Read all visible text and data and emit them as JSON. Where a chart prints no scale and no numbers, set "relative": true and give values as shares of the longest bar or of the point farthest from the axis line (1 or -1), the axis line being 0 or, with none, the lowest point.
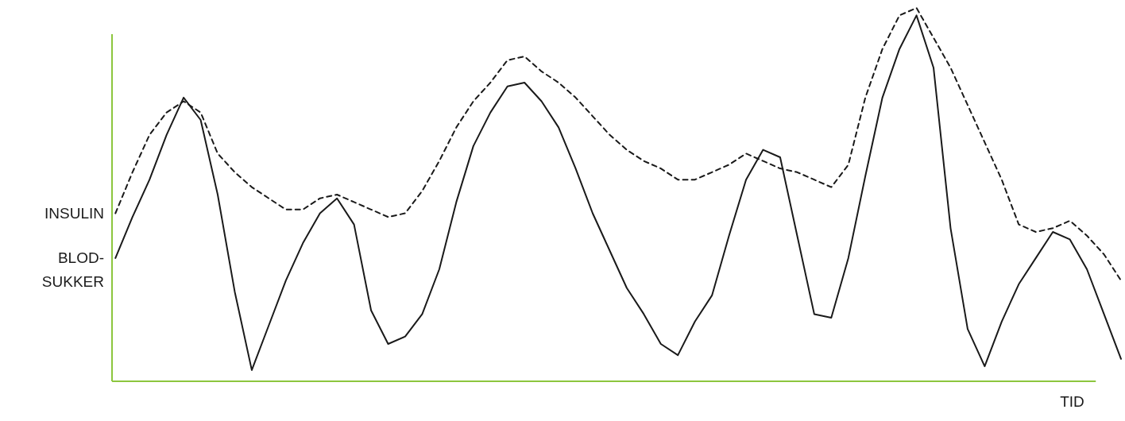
{
  "chart_data": {
    "type": "line",
    "relative": true,
    "xlabel": "TID",
    "marker": "none",
    "grid": false,
    "tick_labels": false,
    "categories": [
      null,
      null,
      null,
      null,
      null,
      null,
      null,
      null,
      null,
      null,
      null,
      null,
      null,
      null,
      null,
      null,
      null,
      null,
      null,
      null,
      null,
      null,
      null,
      null,
      null,
      null,
      null,
      null,
      null,
      null,
      null,
      null,
      null,
      null,
      null,
      null,
      null,
      null,
      null,
      null,
      null,
      null,
      null,
      null,
      null,
      null,
      null,
      null,
      null,
      null,
      null,
      null,
      null,
      null,
      null,
      null,
      null,
      null,
      null,
      null
    ],
    "series": [
      {
        "name": "INSULIN",
        "color": "#1a1a1a",
        "line_style": "dashed",
        "values": [
          0.45,
          0.56,
          0.66,
          0.72,
          0.75,
          0.72,
          0.61,
          0.56,
          0.52,
          0.49,
          0.46,
          0.46,
          0.49,
          0.5,
          0.48,
          0.46,
          0.44,
          0.45,
          0.51,
          0.59,
          0.68,
          0.75,
          0.8,
          0.86,
          0.87,
          0.83,
          0.8,
          0.76,
          0.71,
          0.66,
          0.62,
          0.59,
          0.57,
          0.54,
          0.54,
          0.56,
          0.58,
          0.61,
          0.59,
          0.57,
          0.56,
          0.54,
          0.52,
          0.58,
          0.76,
          0.89,
          0.98,
          1.0,
          0.92,
          0.84,
          0.74,
          0.64,
          0.54,
          0.42,
          0.4,
          0.41,
          0.43,
          0.39,
          0.34,
          0.27
        ]
      },
      {
        "name": "BLOD-SUKKER",
        "color": "#1a1a1a",
        "line_style": "solid",
        "values": [
          0.33,
          0.44,
          0.54,
          0.66,
          0.76,
          0.7,
          0.5,
          0.24,
          0.03,
          0.15,
          0.27,
          0.37,
          0.45,
          0.49,
          0.42,
          0.19,
          0.1,
          0.12,
          0.18,
          0.3,
          0.48,
          0.63,
          0.72,
          0.79,
          0.8,
          0.75,
          0.68,
          0.57,
          0.45,
          0.35,
          0.25,
          0.18,
          0.1,
          0.07,
          0.16,
          0.23,
          0.39,
          0.54,
          0.62,
          0.6,
          0.39,
          0.18,
          0.17,
          0.33,
          0.55,
          0.76,
          0.89,
          0.98,
          0.84,
          0.41,
          0.14,
          0.04,
          0.16,
          0.26,
          0.33,
          0.4,
          0.38,
          0.3,
          0.18,
          0.06
        ]
      }
    ]
  }
}
